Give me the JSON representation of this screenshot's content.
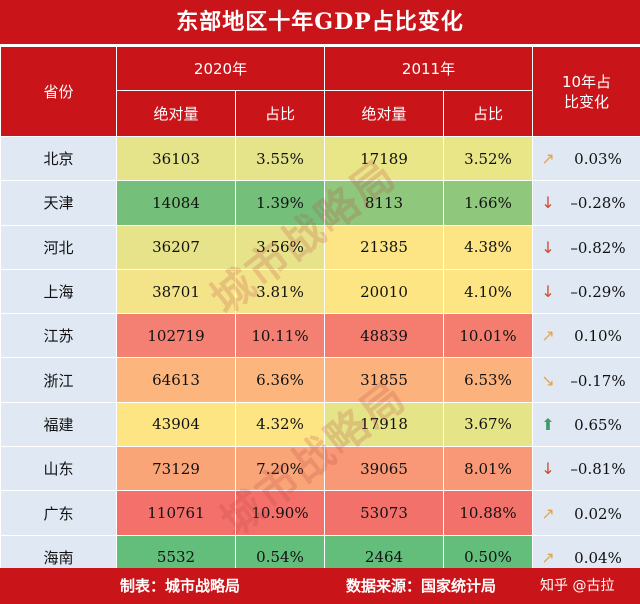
{
  "title": "东部地区十年GDP占比变化",
  "headers": {
    "province": "省份",
    "y2020": "2020年",
    "y2011": "2011年",
    "change": "10年占比变化",
    "absolute": "绝对量",
    "share": "占比"
  },
  "rows": [
    {
      "province": "北京",
      "abs2020": "36103",
      "share2020": "3.55%",
      "abs2011": "17189",
      "share2011": "3.52%",
      "change": "0.03%",
      "arrow": "↗",
      "arrow_color": "#e3a44a",
      "c2020": "#e5e48a",
      "c2011": "#e8e686"
    },
    {
      "province": "天津",
      "abs2020": "14084",
      "share2020": "1.39%",
      "abs2011": "8113",
      "share2011": "1.66%",
      "change": "–0.28%",
      "arrow": "↓",
      "arrow_color": "#d24a2e",
      "c2020": "#74c07a",
      "c2011": "#8fc77c"
    },
    {
      "province": "河北",
      "abs2020": "36207",
      "share2020": "3.56%",
      "abs2011": "21385",
      "share2011": "4.38%",
      "change": "–0.82%",
      "arrow": "↓",
      "arrow_color": "#d24a2e",
      "c2020": "#e6e38a",
      "c2011": "#fde484"
    },
    {
      "province": "上海",
      "abs2020": "38701",
      "share2020": "3.81%",
      "abs2011": "20010",
      "share2011": "4.10%",
      "change": "–0.29%",
      "arrow": "↓",
      "arrow_color": "#d24a2e",
      "c2020": "#f3e48a",
      "c2011": "#fde583"
    },
    {
      "province": "江苏",
      "abs2020": "102719",
      "share2020": "10.11%",
      "abs2011": "48839",
      "share2011": "10.01%",
      "change": "0.10%",
      "arrow": "↗",
      "arrow_color": "#e3a44a",
      "c2020": "#f47f73",
      "c2011": "#f47d70"
    },
    {
      "province": "浙江",
      "abs2020": "64613",
      "share2020": "6.36%",
      "abs2011": "31855",
      "share2011": "6.53%",
      "change": "–0.17%",
      "arrow": "↘",
      "arrow_color": "#e3a44a",
      "c2020": "#fbb57d",
      "c2011": "#fbb27c"
    },
    {
      "province": "福建",
      "abs2020": "43904",
      "share2020": "4.32%",
      "abs2011": "17918",
      "share2011": "3.67%",
      "change": "0.65%",
      "arrow": "⬆",
      "arrow_color": "#3e9a6a",
      "c2020": "#fde583",
      "c2011": "#e5e588"
    },
    {
      "province": "山东",
      "abs2020": "73129",
      "share2020": "7.20%",
      "abs2011": "39065",
      "share2011": "8.01%",
      "change": "–0.81%",
      "arrow": "↓",
      "arrow_color": "#d24a2e",
      "c2020": "#f9a578",
      "c2011": "#f99876"
    },
    {
      "province": "广东",
      "abs2020": "110761",
      "share2020": "10.90%",
      "abs2011": "53073",
      "share2011": "10.88%",
      "change": "0.02%",
      "arrow": "↗",
      "arrow_color": "#e3a44a",
      "c2020": "#f3706b",
      "c2011": "#f3716b"
    },
    {
      "province": "海南",
      "abs2020": "5532",
      "share2020": "0.54%",
      "abs2011": "2464",
      "share2011": "0.50%",
      "change": "0.04%",
      "arrow": "↗",
      "arrow_color": "#e3a44a",
      "c2020": "#63be7b",
      "c2011": "#63be7b"
    }
  ],
  "footer": {
    "made_by": "制表：城市战略局",
    "source": "数据来源：国家统计局",
    "author": "知乎 @古拉"
  },
  "watermark": "城市战略局"
}
